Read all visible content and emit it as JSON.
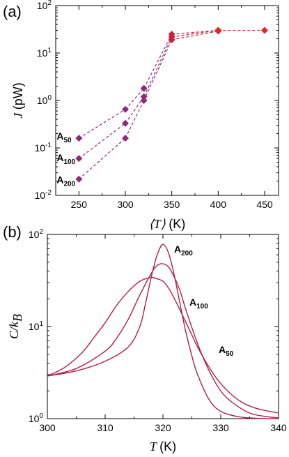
{
  "chart_data": [
    {
      "panel": "(a)",
      "type": "scatter",
      "xlabel": "⟨T⟩ (K)",
      "ylabel": "J (pW)",
      "xlim": [
        225,
        465
      ],
      "ylim": [
        0.01,
        100
      ],
      "yscale": "log",
      "x_ticks": [
        "250",
        "300",
        "350",
        "400",
        "450"
      ],
      "y_ticks": [
        "10-2",
        "10-1",
        "100",
        "101",
        "102"
      ],
      "marker": "diamond",
      "line_style": "dashed",
      "colors": {
        "low_T": "#8B2C7A",
        "mid_T": "#C8203E",
        "high_T": "#E8232A"
      },
      "series": [
        {
          "name": "A50",
          "x": [
            250,
            300,
            320,
            350,
            400,
            450
          ],
          "y": [
            0.16,
            0.65,
            1.8,
            25,
            30,
            30
          ]
        },
        {
          "name": "A100",
          "x": [
            250,
            300,
            320,
            350,
            400
          ],
          "y": [
            0.06,
            0.33,
            1.2,
            22,
            30
          ]
        },
        {
          "name": "A200",
          "x": [
            250,
            300,
            320,
            350,
            400
          ],
          "y": [
            0.022,
            0.16,
            1.0,
            19,
            29
          ]
        }
      ]
    },
    {
      "panel": "(b)",
      "type": "line",
      "xlabel": "T (K)",
      "ylabel": "C/kB",
      "xlim": [
        300,
        340
      ],
      "ylim": [
        1,
        100
      ],
      "yscale": "log",
      "x_ticks": [
        "300",
        "310",
        "320",
        "330",
        "340"
      ],
      "y_ticks": [
        "100",
        "101",
        "102"
      ],
      "color": "#B01E4A",
      "series": [
        {
          "name": "A200",
          "x": [
            300,
            305,
            310,
            314,
            316,
            317,
            318,
            319,
            320,
            321,
            322,
            323,
            324,
            325,
            326,
            328,
            330,
            333,
            336,
            340
          ],
          "y": [
            2.9,
            3.3,
            4.2,
            6.0,
            10,
            18,
            35,
            60,
            78,
            62,
            35,
            17,
            8.5,
            4.8,
            3.0,
            1.6,
            1.2,
            1.05,
            1.01,
            1.0
          ]
        },
        {
          "name": "A100",
          "x": [
            300,
            305,
            310,
            312,
            314,
            316,
            318,
            319,
            320,
            321,
            322,
            323,
            324,
            326,
            328,
            330,
            332,
            335,
            338,
            340
          ],
          "y": [
            2.9,
            3.5,
            5.4,
            7.5,
            12,
            22,
            38,
            46,
            48,
            44,
            34,
            24,
            15,
            6.5,
            3.3,
            2.0,
            1.5,
            1.15,
            1.05,
            1.02
          ]
        },
        {
          "name": "A50",
          "x": [
            300,
            303,
            306,
            308,
            310,
            312,
            314,
            316,
            318,
            319,
            320,
            321,
            322,
            324,
            326,
            328,
            330,
            333,
            336,
            340
          ],
          "y": [
            2.9,
            3.6,
            5.2,
            7.5,
            11,
            17,
            24,
            31,
            34,
            33,
            31,
            26,
            20,
            11,
            6.0,
            3.6,
            2.4,
            1.6,
            1.3,
            1.15
          ]
        }
      ]
    }
  ]
}
